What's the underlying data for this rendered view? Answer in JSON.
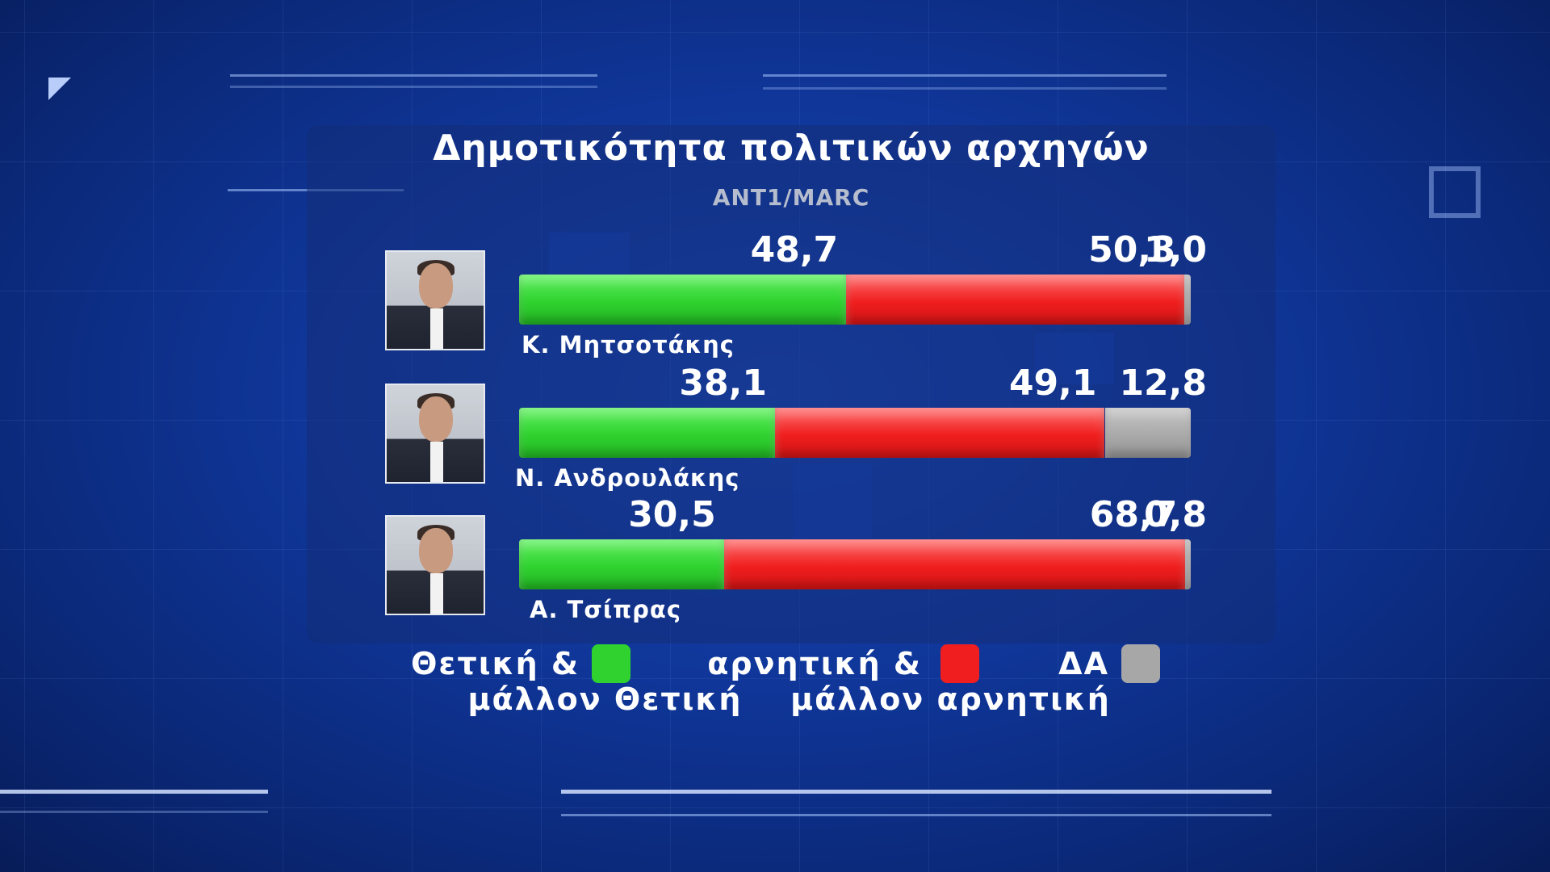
{
  "colors": {
    "positive": "#2fd22f",
    "negative": "#f01e1e",
    "no_answer": "#a7a7a7",
    "background": "#0f3597"
  },
  "chart_data": {
    "type": "bar",
    "stacked": true,
    "orientation": "horizontal",
    "title": "Δημοτικότητα πολιτικών αρχηγών",
    "subtitle": "ANT1/MARC",
    "categories": [
      "Κ. Μητσοτάκης",
      "Ν. Ανδρουλάκης",
      "Α. Τσίπρας"
    ],
    "value_labels": [
      [
        "48,7",
        "50,3",
        "1,0"
      ],
      [
        "38,1",
        "49,1",
        "12,8"
      ],
      [
        "30,5",
        "68,7",
        "0,8"
      ]
    ],
    "series": [
      {
        "key": "positive",
        "values": [
          48.7,
          38.1,
          30.5
        ]
      },
      {
        "key": "negative",
        "values": [
          50.3,
          49.1,
          68.7
        ]
      },
      {
        "key": "no_answer",
        "values": [
          1.0,
          12.8,
          0.8
        ]
      }
    ],
    "legend": [
      {
        "key": "positive",
        "line1": "Θετική  &",
        "line2": "μάλλον  Θετική"
      },
      {
        "key": "negative",
        "line1": "αρνητική  &",
        "line2": "μάλλον  αρνητική"
      },
      {
        "key": "no_answer",
        "line1": "ΔΑ",
        "line2": ""
      }
    ],
    "legend_placement": "bottom",
    "grid": false
  },
  "photos": [
    "portrait-mitsotakis",
    "portrait-androulakis",
    "portrait-tsipras"
  ]
}
